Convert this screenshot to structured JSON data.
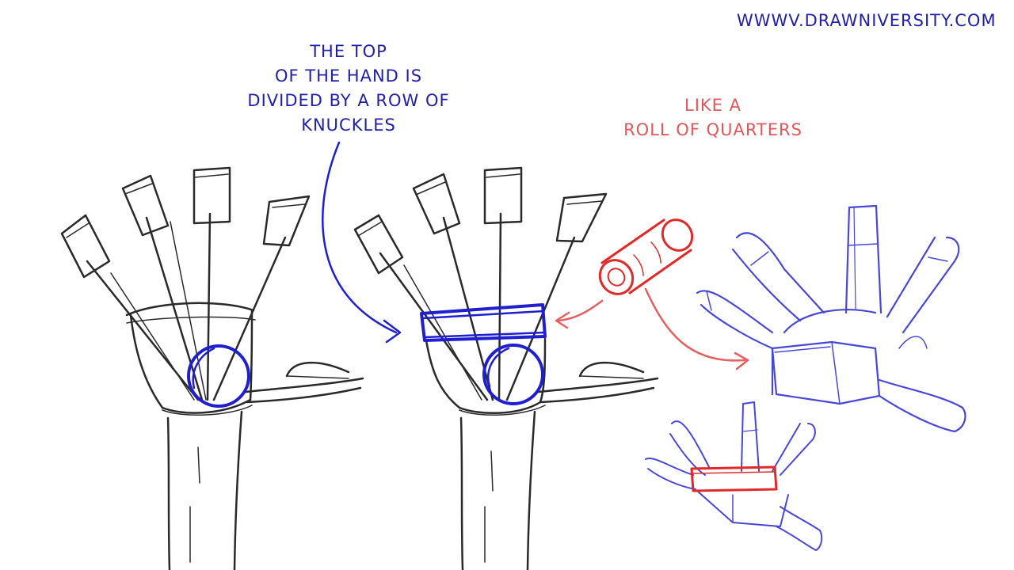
{
  "url": "WWWV.DRAWNIVERSITY.COM",
  "notes": {
    "top_of_hand": [
      "THE TOP",
      "OF THE HAND IS",
      "DIVIDED BY A ROW OF",
      "KNUCKLES"
    ],
    "roll": [
      "LIKE A",
      "ROLL OF QUARTERS"
    ]
  },
  "colors": {
    "sketch": "#2a2a2a",
    "blue": "#1f1fd0",
    "blue_text": "#1f1fa8",
    "red": "#e02a2a",
    "red_text": "#e0585a",
    "light_blue": "#5a5ad8"
  }
}
